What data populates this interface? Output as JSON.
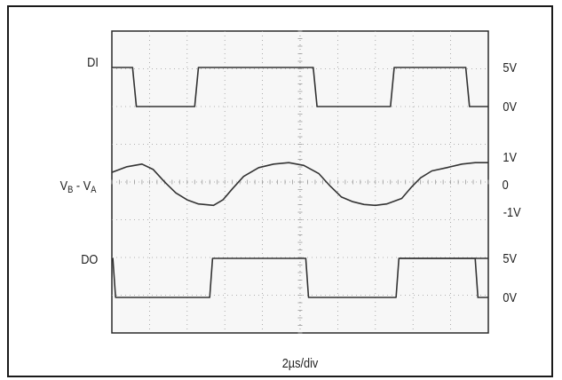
{
  "chart_data": {
    "type": "line",
    "title": "",
    "xlabel": "2µs/div",
    "x_unit": "µs",
    "xlim": [
      0,
      20
    ],
    "grid": true,
    "grid_style": "dotted, 10 x 8 divisions",
    "colors": {
      "trace": "#333333",
      "grid": "#9a9a9a",
      "border": "#1a1a1a"
    },
    "traces": [
      {
        "name_base": "DI",
        "name_sub": "",
        "right_labels": [
          {
            "text": "5V",
            "level": 5
          },
          {
            "text": "0V",
            "level": 0
          }
        ],
        "ylim": [
          -0.5,
          5.5
        ],
        "x": [
          0,
          1.1,
          1.3,
          4.4,
          4.6,
          10.7,
          10.9,
          14.8,
          15.0,
          18.8,
          19.0,
          20
        ],
        "y": [
          5,
          5,
          0,
          0,
          5,
          5,
          0,
          0,
          5,
          5,
          0,
          0
        ]
      },
      {
        "name_base": "V",
        "name_parts": [
          {
            "text": "V",
            "sub": false
          },
          {
            "text": "B",
            "sub": true
          },
          {
            "text": " - V",
            "sub": false
          },
          {
            "text": "A",
            "sub": true
          }
        ],
        "right_labels": [
          {
            "text": "1V",
            "level": 1
          },
          {
            "text": "0",
            "level": 0
          },
          {
            "text": "-1V",
            "level": -1
          }
        ],
        "ylim": [
          -1.3,
          1.3
        ],
        "x": [
          0,
          0.8,
          1.6,
          2.2,
          2.8,
          3.4,
          4.0,
          4.6,
          5.4,
          5.9,
          6.4,
          7.0,
          7.8,
          8.6,
          9.4,
          10.2,
          11.0,
          11.6,
          12.2,
          12.8,
          13.4,
          14.0,
          14.6,
          15.4,
          15.9,
          16.4,
          17.0,
          17.8,
          18.6,
          19.3,
          20
        ],
        "y": [
          0.45,
          0.65,
          0.75,
          0.55,
          0.1,
          -0.3,
          -0.55,
          -0.7,
          -0.75,
          -0.55,
          -0.15,
          0.3,
          0.62,
          0.75,
          0.8,
          0.7,
          0.4,
          -0.05,
          -0.45,
          -0.62,
          -0.72,
          -0.75,
          -0.7,
          -0.5,
          -0.1,
          0.25,
          0.5,
          0.62,
          0.75,
          0.8,
          0.8
        ]
      },
      {
        "name_base": "DO",
        "name_sub": "",
        "right_labels": [
          {
            "text": "5V",
            "level": 5
          },
          {
            "text": "0V",
            "level": 0
          }
        ],
        "ylim": [
          -0.5,
          5.5
        ],
        "x": [
          0,
          0.05,
          0.2,
          5.2,
          5.35,
          10.3,
          10.45,
          15.1,
          15.25,
          20
        ],
        "y": [
          5,
          5,
          0,
          0,
          5,
          5,
          0,
          0,
          5,
          5
        ],
        "tail": {
          "x": [
            15.25,
            19.3,
            19.45,
            20
          ],
          "y": [
            5,
            5,
            0,
            0
          ]
        }
      }
    ]
  }
}
